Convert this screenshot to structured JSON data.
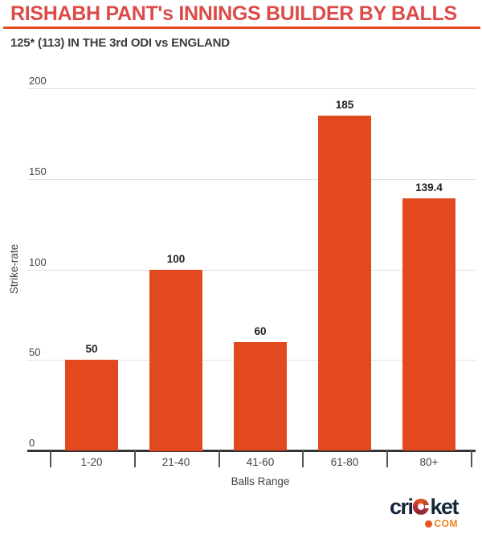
{
  "header": {
    "title": "RISHABH PANT's INNINGS BUILDER BY BALLS",
    "subtitle": "125* (113) IN THE 3rd ODI vs ENGLAND"
  },
  "chart_data": {
    "type": "bar",
    "categories": [
      "1-20",
      "21-40",
      "41-60",
      "61-80",
      "80+"
    ],
    "values": [
      50,
      100,
      60,
      185,
      139.4
    ],
    "title": "RISHABH PANT's INNINGS BUILDER BY BALLS",
    "subtitle": "125* (113) IN THE 3rd ODI vs ENGLAND",
    "xlabel": "Balls Range",
    "ylabel": "Strike-rate",
    "ylim": [
      0,
      200
    ],
    "y_ticks": [
      0,
      50,
      100,
      150,
      200
    ],
    "bar_color": "#E3491E",
    "grid": true,
    "legend": false,
    "value_labels_shown": true
  },
  "footer": {
    "logo_part1": "cri",
    "logo_part2": "ket",
    "logo_suffix": "COM"
  },
  "colors": {
    "accent_red_title": "#DC4B48",
    "accent_orange": "#E3491E",
    "text_dark": "#212121",
    "text_subtitle": "#3C3C3C",
    "axis_text": "#424242",
    "gridline": "#E0E0E0",
    "axis_line": "#333333",
    "logo_navy": "#15263A",
    "logo_orange": "#F08119"
  }
}
